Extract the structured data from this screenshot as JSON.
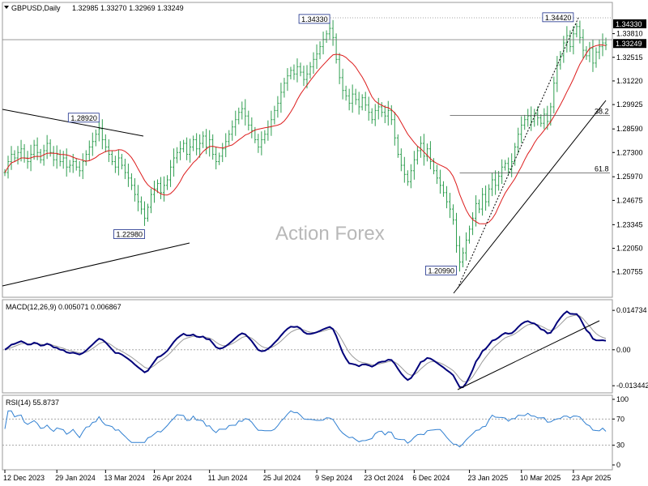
{
  "header": {
    "symbol": "GBPUSD,Daily",
    "ohlc": "1.32985 1.33270 1.32969 1.33249"
  },
  "watermark": "Action Forex",
  "colors": {
    "candle": "#2f9e50",
    "ma": "#dd1c1c",
    "trend": "#000000",
    "macd_main": "#00007a",
    "macd_signal": "#9a9a9a",
    "rsi": "#2f7fd1",
    "grid": "#9a9a9a",
    "price_box": "#000000"
  },
  "price_panel": {
    "ylim": [
      1.195,
      1.353
    ],
    "ticks": [
      "1.34330",
      "1.33810",
      "1.33249",
      "1.32515",
      "1.31220",
      "1.29925",
      "1.28590",
      "1.27300",
      "1.25970",
      "1.24675",
      "1.23345",
      "1.22050",
      "1.20755"
    ],
    "current_price": "1.33249",
    "high_price_tag": "1.34330",
    "annotations": [
      {
        "text": "1.28920",
        "date_index": 29,
        "price": 1.2892
      },
      {
        "text": "1.22980",
        "date_index": 43,
        "price": 1.2298
      },
      {
        "text": "1.34330",
        "date_index": 100,
        "price": 1.3433
      },
      {
        "text": "1.20990",
        "date_index": 139,
        "price": 1.2099
      },
      {
        "text": "1.34420",
        "date_index": 175,
        "price": 1.3442
      }
    ],
    "fib_levels": [
      {
        "label": "38.2",
        "price": 1.2933
      },
      {
        "label": "61.8",
        "price": 1.2618
      }
    ]
  },
  "macd_panel": {
    "label": "MACD(12,26,9) 0.005071 0.006867",
    "ylim": [
      -0.0155,
      0.0172
    ],
    "ticks": [
      "0.014734",
      "0.00",
      "-0.013442"
    ],
    "zero_line_value": 0.0
  },
  "rsi_panel": {
    "label": "RSI(14) 55.8737",
    "ylim": [
      0,
      100
    ],
    "ticks": [
      "100",
      "70",
      "30",
      "0"
    ],
    "levels": [
      70,
      30
    ]
  },
  "x_axis": {
    "tick_labels": [
      "12 Dec 2023",
      "29 Jan 2024",
      "13 Mar 2024",
      "26 Apr 2024",
      "11 Jun 2024",
      "25 Jul 2024",
      "9 Sep 2024",
      "23 Oct 2024",
      "6 Dec 2024",
      "23 Jan 2025",
      "10 Mar 2025",
      "23 Apr 2025"
    ],
    "tick_indices": [
      0,
      16,
      31,
      46,
      63,
      80,
      96,
      111,
      126,
      143,
      159,
      175
    ]
  },
  "chart_data": {
    "type": "line",
    "series": [
      {
        "name": "GBPUSD,Daily",
        "x": "date_index",
        "values": [
          1.262,
          1.268,
          1.272,
          1.27,
          1.273,
          1.275,
          1.27,
          1.268,
          1.272,
          1.277,
          1.273,
          1.269,
          1.274,
          1.278,
          1.273,
          1.269,
          1.272,
          1.268,
          1.27,
          1.265,
          1.266,
          1.268,
          1.265,
          1.263,
          1.268,
          1.272,
          1.276,
          1.279,
          1.283,
          1.286,
          1.28,
          1.276,
          1.272,
          1.268,
          1.265,
          1.27,
          1.266,
          1.262,
          1.259,
          1.255,
          1.25,
          1.246,
          1.242,
          1.237,
          1.243,
          1.25,
          1.253,
          1.256,
          1.251,
          1.255,
          1.258,
          1.265,
          1.27,
          1.273,
          1.275,
          1.278,
          1.272,
          1.276,
          1.28,
          1.275,
          1.278,
          1.282,
          1.276,
          1.28,
          1.272,
          1.268,
          1.271,
          1.275,
          1.279,
          1.283,
          1.287,
          1.291,
          1.295,
          1.297,
          1.293,
          1.288,
          1.285,
          1.28,
          1.276,
          1.28,
          1.283,
          1.287,
          1.291,
          1.296,
          1.3,
          1.306,
          1.311,
          1.315,
          1.318,
          1.316,
          1.32,
          1.317,
          1.313,
          1.316,
          1.32,
          1.324,
          1.327,
          1.331,
          1.335,
          1.338,
          1.341,
          1.336,
          1.324,
          1.314,
          1.307,
          1.304,
          1.3,
          1.305,
          1.302,
          1.298,
          1.303,
          1.299,
          1.295,
          1.291,
          1.296,
          1.298,
          1.295,
          1.293,
          1.296,
          1.291,
          1.281,
          1.272,
          1.266,
          1.261,
          1.257,
          1.263,
          1.269,
          1.274,
          1.278,
          1.271,
          1.275,
          1.268,
          1.263,
          1.259,
          1.255,
          1.251,
          1.246,
          1.242,
          1.236,
          1.222,
          1.213,
          1.218,
          1.225,
          1.231,
          1.237,
          1.245,
          1.242,
          1.25,
          1.246,
          1.253,
          1.258,
          1.255,
          1.26,
          1.265,
          1.267,
          1.264,
          1.268,
          1.276,
          1.283,
          1.288,
          1.291,
          1.293,
          1.29,
          1.294,
          1.292,
          1.289,
          1.294,
          1.29,
          1.298,
          1.311,
          1.321,
          1.326,
          1.333,
          1.337,
          1.331,
          1.338,
          1.342,
          1.336,
          1.329,
          1.326,
          1.33,
          1.322,
          1.328,
          1.331,
          1.333,
          1.332
        ]
      }
    ],
    "xlabel": "",
    "ylabel": "",
    "ylim": [
      1.195,
      1.353
    ]
  }
}
